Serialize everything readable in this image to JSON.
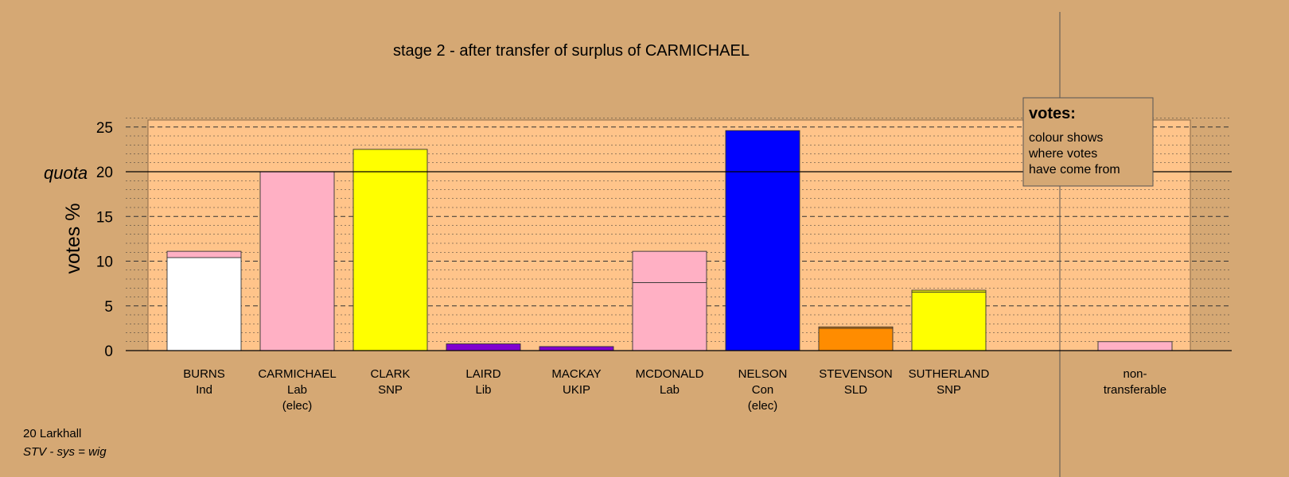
{
  "chart_data": {
    "type": "bar",
    "title": "stage 2 - after transfer of surplus of CARMICHAEL",
    "ylabel": "votes %",
    "ylim": [
      0,
      25
    ],
    "yticks": [
      0,
      5,
      10,
      15,
      20,
      25
    ],
    "quota": 20,
    "quota_label": "quota",
    "candidates": [
      {
        "name": "BURNS",
        "party": "Ind",
        "status": "",
        "color": "#ffffff",
        "segments": [
          {
            "value": 10.4,
            "color": "#ffffff"
          },
          {
            "value": 0.7,
            "color": "#ffb0c4"
          }
        ]
      },
      {
        "name": "CARMICHAEL",
        "party": "Lab",
        "status": "(elec)",
        "color": "#ffb0c4",
        "segments": [
          {
            "value": 20.0,
            "color": "#ffb0c4"
          }
        ]
      },
      {
        "name": "CLARK",
        "party": "SNP",
        "status": "",
        "color": "#ffff00",
        "segments": [
          {
            "value": 22.5,
            "color": "#ffff00"
          }
        ]
      },
      {
        "name": "LAIRD",
        "party": "Lib",
        "status": "",
        "color": "#8000d0",
        "segments": [
          {
            "value": 0.75,
            "color": "#8000d0"
          }
        ]
      },
      {
        "name": "MACKAY",
        "party": "UKIP",
        "status": "",
        "color": "#8000d0",
        "segments": [
          {
            "value": 0.45,
            "color": "#8000d0"
          }
        ]
      },
      {
        "name": "MCDONALD",
        "party": "Lab",
        "status": "",
        "color": "#ffb0c4",
        "segments": [
          {
            "value": 7.6,
            "color": "#ffb0c4"
          },
          {
            "value": 3.5,
            "color": "#ffb0c4"
          }
        ]
      },
      {
        "name": "NELSON",
        "party": "Con",
        "status": "(elec)",
        "color": "#0000ff",
        "segments": [
          {
            "value": 24.6,
            "color": "#0000ff"
          }
        ]
      },
      {
        "name": "STEVENSON",
        "party": "SLD",
        "status": "",
        "color": "#ff8c00",
        "segments": [
          {
            "value": 2.5,
            "color": "#ff8c00"
          },
          {
            "value": 0.15,
            "color": "#ff8c00"
          }
        ]
      },
      {
        "name": "SUTHERLAND",
        "party": "SNP",
        "status": "",
        "color": "#ffff00",
        "segments": [
          {
            "value": 6.55,
            "color": "#ffff00"
          },
          {
            "value": 0.2,
            "color": "#ffff00"
          }
        ]
      }
    ],
    "nontransferable": {
      "label_line1": "non-",
      "label_line2": "transferable",
      "value": 1.0,
      "color": "#ffb0c4"
    },
    "grid": true,
    "legend": {
      "position": "top-right",
      "title": "votes:",
      "lines": [
        "colour shows",
        "where votes",
        "have come from"
      ]
    }
  },
  "footer": {
    "area": "20 Larkhall",
    "system": "STV - sys = wig"
  }
}
